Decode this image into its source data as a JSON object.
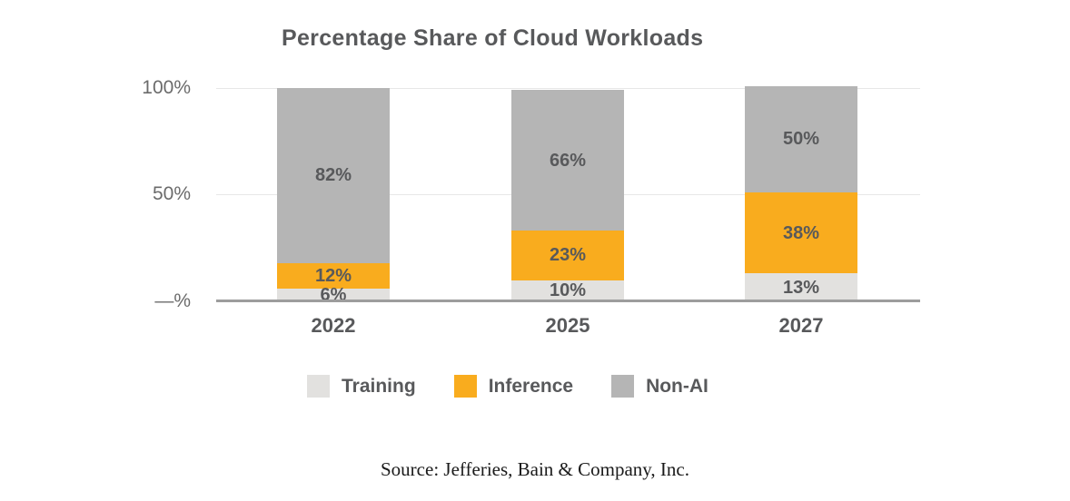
{
  "chart_data": {
    "type": "bar",
    "stacked": true,
    "title": "Percentage Share of Cloud Workloads",
    "categories": [
      "2022",
      "2025",
      "2027"
    ],
    "series": [
      {
        "name": "Training",
        "color": "#e2e1df",
        "values": [
          6,
          10,
          13
        ]
      },
      {
        "name": "Inference",
        "color": "#f9ac1e",
        "values": [
          12,
          23,
          38
        ]
      },
      {
        "name": "Non-AI",
        "color": "#b5b5b5",
        "values": [
          82,
          66,
          50
        ]
      }
    ],
    "y_ticks": [
      "100%",
      "50%",
      "—%"
    ],
    "ylim": [
      0,
      100
    ],
    "xlabel": "",
    "ylabel": "",
    "grid": true,
    "legend_position": "bottom",
    "value_suffix": "%",
    "label_color": "#58595b",
    "gridline_color": "#e7e7e7",
    "axis_line_color": "#9d9d9d"
  },
  "source_note": "Source: Jefferies, Bain & Company, Inc."
}
